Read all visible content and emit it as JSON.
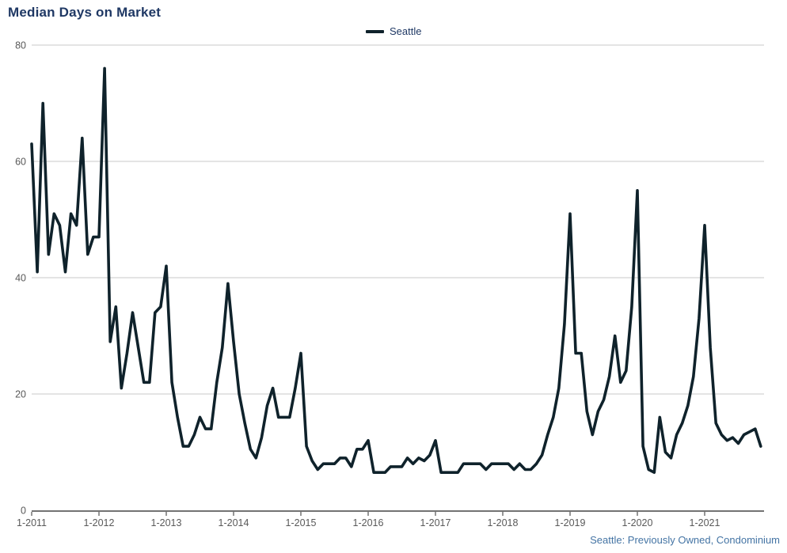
{
  "header": {
    "title": "Median Days on Market"
  },
  "legend": {
    "series_label": "Seattle"
  },
  "footer": {
    "source_note": "Seattle: Previously Owned, Condominium"
  },
  "colors": {
    "series_line": "#0f222b",
    "title_text": "#1f3864",
    "axis_line": "#737373",
    "gridline": "#c9c9c9",
    "axis_label_text": "#595959",
    "source_note_text": "#4474a4",
    "background": "#ffffff"
  },
  "chart_data": {
    "type": "line",
    "title": "Median Days on Market",
    "x_start_label": "1-2011",
    "frequency": "monthly",
    "x_tick_labels": [
      "1-2011",
      "1-2012",
      "1-2013",
      "1-2014",
      "1-2015",
      "1-2016",
      "1-2017",
      "1-2018",
      "1-2019",
      "1-2020",
      "1-2021"
    ],
    "y_ticks": [
      0,
      20,
      40,
      60,
      80
    ],
    "ylim": [
      0,
      80
    ],
    "grid": "horizontal",
    "legend_position": "top-center",
    "xlabel": "",
    "ylabel": "",
    "source_note": "Seattle: Previously Owned, Condominium",
    "series": [
      {
        "name": "Seattle",
        "color": "#0f222b",
        "values": [
          63,
          41,
          70,
          44,
          51,
          49,
          41,
          51,
          49,
          64,
          44,
          47,
          47,
          76,
          29,
          35,
          21,
          27,
          34,
          28,
          22,
          22,
          34,
          35,
          42,
          22,
          16,
          11,
          11,
          13,
          16,
          14,
          14,
          22,
          28,
          39,
          29,
          20,
          15,
          10.5,
          9,
          12.5,
          18,
          21,
          16,
          16,
          16,
          21,
          27,
          11,
          8.5,
          7,
          8,
          8,
          8,
          9,
          9,
          7.5,
          10.5,
          10.5,
          12,
          6.5,
          6.5,
          6.5,
          7.5,
          7.5,
          7.5,
          9,
          8,
          9,
          8.5,
          9.5,
          12,
          6.5,
          6.5,
          6.5,
          6.5,
          8,
          8,
          8,
          8,
          7,
          8,
          8,
          8,
          8,
          7,
          8,
          7,
          7,
          8,
          9.5,
          13,
          16,
          21,
          32,
          51,
          27,
          27,
          17,
          13,
          17,
          19,
          23,
          30,
          22,
          24,
          35,
          55,
          11,
          7,
          6.5,
          16,
          10,
          9,
          13,
          15,
          18,
          23,
          33,
          49,
          28,
          15,
          13,
          12,
          12.5,
          11.5,
          13,
          13.5,
          14,
          11
        ]
      }
    ]
  }
}
